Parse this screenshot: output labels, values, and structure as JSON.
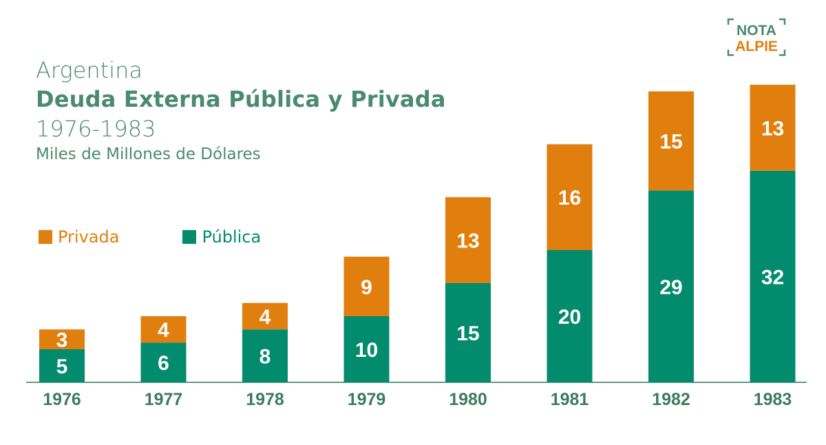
{
  "logo": {
    "line1": "NOTA",
    "line2": "ALPIE",
    "color": "#4a8a6e",
    "accent": "#e07f0e"
  },
  "colors": {
    "privada": "#e07f0e",
    "publica": "#038b6e",
    "title": "#4a8a6e",
    "axis_label": "#3c7b60",
    "baseline": "#5d9c80"
  },
  "chart_data": {
    "type": "bar",
    "stacked": true,
    "title": "Argentina",
    "subtitle": "Deuda Externa Pública y Privada",
    "period": "1976-1983",
    "unit": "Miles de Millones de Dólares",
    "xlabel": "",
    "ylabel": "",
    "categories": [
      "1976",
      "1977",
      "1978",
      "1979",
      "1980",
      "1981",
      "1982",
      "1983"
    ],
    "series": [
      {
        "name": "Pública",
        "color": "#038b6e",
        "values": [
          5,
          6,
          8,
          10,
          15,
          20,
          29,
          32
        ]
      },
      {
        "name": "Privada",
        "color": "#e07f0e",
        "values": [
          3,
          4,
          4,
          9,
          13,
          16,
          15,
          13
        ]
      }
    ],
    "legend": [
      "Privada",
      "Pública"
    ],
    "legend_position": "left",
    "data_labels": true,
    "grid": false
  }
}
